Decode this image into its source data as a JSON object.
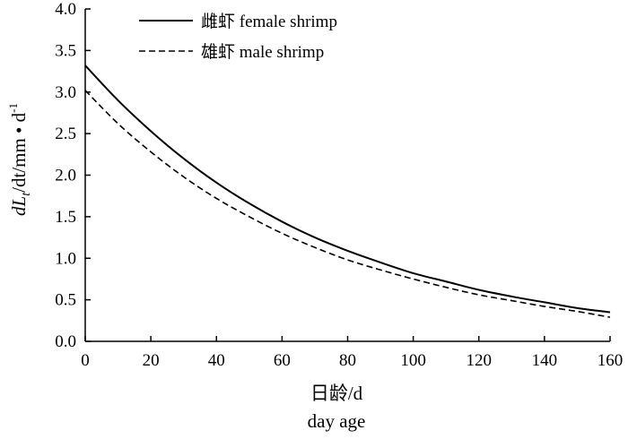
{
  "chart_data": {
    "type": "line",
    "x": [
      0,
      10,
      20,
      30,
      40,
      50,
      60,
      70,
      80,
      90,
      100,
      110,
      120,
      130,
      140,
      150,
      160
    ],
    "series": [
      {
        "name": "雌虾 female shrimp",
        "style": "solid",
        "color": "#000000",
        "values": [
          3.32,
          2.9,
          2.53,
          2.2,
          1.91,
          1.66,
          1.44,
          1.25,
          1.09,
          0.95,
          0.82,
          0.72,
          0.62,
          0.54,
          0.47,
          0.4,
          0.35
        ]
      },
      {
        "name": "雄虾 male shrimp",
        "style": "dashed",
        "color": "#000000",
        "values": [
          3.02,
          2.62,
          2.28,
          1.98,
          1.72,
          1.5,
          1.3,
          1.13,
          0.98,
          0.86,
          0.75,
          0.65,
          0.56,
          0.49,
          0.42,
          0.36,
          0.29
        ]
      }
    ],
    "x_ticks": [
      "0",
      "20",
      "40",
      "60",
      "80",
      "100",
      "120",
      "140",
      "160"
    ],
    "y_ticks": [
      "0.0",
      "0.5",
      "1.0",
      "1.5",
      "2.0",
      "2.5",
      "3.0",
      "3.5",
      "4.0"
    ],
    "xlim": [
      0,
      160
    ],
    "ylim": [
      0,
      4.0
    ],
    "xlabel_cn": "日龄/d",
    "xlabel_en": "day age",
    "ylabel": {
      "p1": "dL",
      "sub": "t",
      "p2": "/dt/mm • d",
      "sup": "-1"
    },
    "grid": false,
    "legend_position": "top-left"
  }
}
